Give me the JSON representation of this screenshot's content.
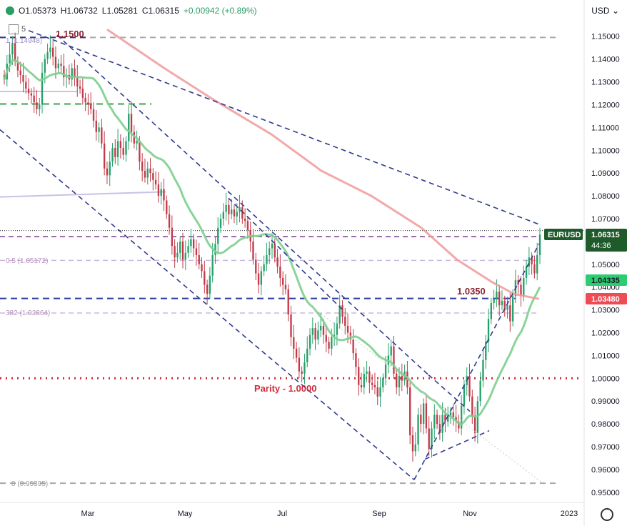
{
  "header": {
    "o": "O1.05373",
    "h": "H1.06732",
    "l": "L1.05281",
    "c": "C1.06315",
    "change": "+0.00942 (+0.89%)",
    "tool_label": "5",
    "currency": "USD"
  },
  "colors": {
    "up": "#26a069",
    "down": "#c23a48",
    "sma_fast": "#7dcf8e",
    "sma_slow": "#f09a9a",
    "trend": "#2f3b8f",
    "price_tag": "#1f5a2b",
    "sma_slow_tag": "#ef4b55",
    "sma_fast_tag": "#2ecc71"
  },
  "chart_data": {
    "type": "candlestick",
    "symbol": "EURUSD",
    "x_ticks": [
      "Mar",
      "May",
      "Jul",
      "Sep",
      "Nov",
      "2023"
    ],
    "y_ticks": [
      "1.15000",
      "1.14000",
      "1.13000",
      "1.12000",
      "1.11000",
      "1.10000",
      "1.09000",
      "1.08000",
      "1.07000",
      "1.06000",
      "1.05000",
      "1.04000",
      "1.03000",
      "1.02000",
      "1.01000",
      "1.00000",
      "0.99000",
      "0.98000",
      "0.97000",
      "0.96000",
      "0.95000"
    ],
    "ylim": [
      0.9465,
      1.1565
    ],
    "last_price": {
      "value": "1.06315",
      "countdown": "44:36",
      "label": "EURUSD"
    },
    "sma_fast_value": "1.04335",
    "sma_slow_value": "1.03480",
    "annotations": {
      "level_1150": "1.1500",
      "level_1035": "1.0350",
      "parity": "Parity - 1.0000",
      "fib_1": "1 (1.14948)",
      "fib_05": "0.5 (1.05172)",
      "fib_382": "382 (1.02864)",
      "fib_0": "0 (0.95395)"
    },
    "horizontal_levels": [
      {
        "value": 1.1495,
        "style": "gray-dash"
      },
      {
        "value": 1.1495,
        "style": "navy-dash-left"
      },
      {
        "value": 1.1203,
        "style": "green-dash"
      },
      {
        "value": 1.1258,
        "style": "lavender"
      },
      {
        "value": 1.0648,
        "style": "black-dot"
      },
      {
        "value": 1.0621,
        "style": "purple-dash"
      },
      {
        "value": 1.0517,
        "style": "lavender-dash"
      },
      {
        "value": 1.035,
        "style": "navy-dash"
      },
      {
        "value": 1.0286,
        "style": "lavender-dash"
      },
      {
        "value": 1.0,
        "style": "red-dot"
      },
      {
        "value": 0.954,
        "style": "gray-dash"
      }
    ],
    "closes": [
      1.131,
      1.138,
      1.142,
      1.147,
      1.139,
      1.135,
      1.133,
      1.13,
      1.127,
      1.125,
      1.124,
      1.121,
      1.118,
      1.12,
      1.134,
      1.14,
      1.143,
      1.145,
      1.141,
      1.136,
      1.138,
      1.137,
      1.132,
      1.133,
      1.131,
      1.136,
      1.132,
      1.128,
      1.127,
      1.123,
      1.121,
      1.12,
      1.118,
      1.113,
      1.108,
      1.11,
      1.103,
      1.092,
      1.089,
      1.095,
      1.101,
      1.097,
      1.104,
      1.101,
      1.098,
      1.104,
      1.116,
      1.108,
      1.103,
      1.104,
      1.095,
      1.091,
      1.088,
      1.092,
      1.09,
      1.087,
      1.085,
      1.08,
      1.083,
      1.078,
      1.072,
      1.066,
      1.058,
      1.053,
      1.055,
      1.06,
      1.052,
      1.055,
      1.058,
      1.061,
      1.057,
      1.054,
      1.05,
      1.047,
      1.041,
      1.037,
      1.045,
      1.054,
      1.059,
      1.066,
      1.07,
      1.073,
      1.076,
      1.072,
      1.074,
      1.071,
      1.073,
      1.075,
      1.07,
      1.069,
      1.065,
      1.06,
      1.052,
      1.046,
      1.041,
      1.047,
      1.05,
      1.054,
      1.057,
      1.059,
      1.053,
      1.049,
      1.044,
      1.041,
      1.039,
      1.028,
      1.018,
      1.013,
      1.009,
      1.003,
      1.002,
      1.007,
      1.013,
      1.019,
      1.022,
      1.017,
      1.021,
      1.023,
      1.019,
      1.016,
      1.013,
      1.018,
      1.019,
      1.024,
      1.032,
      1.027,
      1.023,
      1.02,
      1.017,
      1.011,
      1.005,
      0.997,
      0.996,
      1.002,
      1.003,
      0.998,
      0.997,
      0.996,
      0.992,
      0.996,
      1.0,
      1.006,
      1.01,
      1.014,
      1.002,
      0.996,
      1.001,
      0.999,
      1.003,
      0.996,
      0.975,
      0.968,
      0.971,
      0.984,
      0.98,
      0.989,
      0.978,
      0.969,
      0.978,
      0.984,
      0.98,
      0.976,
      0.984,
      0.981,
      0.983,
      0.985,
      0.983,
      0.981,
      0.978,
      0.988,
      0.997,
      1.001,
      0.992,
      0.983,
      0.976,
      0.99,
      0.999,
      1.008,
      1.016,
      1.026,
      1.033,
      1.035,
      1.038,
      1.032,
      1.034,
      1.03,
      1.032,
      1.025,
      1.036,
      1.043,
      1.041,
      1.036,
      1.044,
      1.049,
      1.053,
      1.05,
      1.046,
      1.054,
      1.063
    ]
  }
}
